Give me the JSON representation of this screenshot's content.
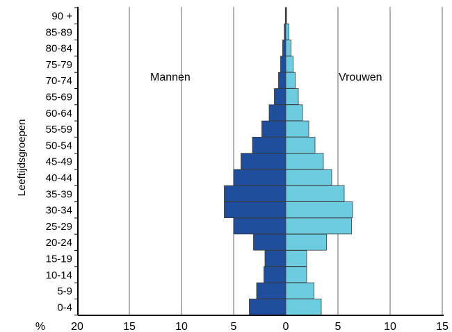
{
  "chart_data": {
    "type": "bar",
    "orientation": "horizontal",
    "subtype": "population-pyramid",
    "ylabel": "Leeftijdsgroepen",
    "xlabel": "%",
    "categories": [
      "0-4",
      "5-9",
      "10-14",
      "15-19",
      "20-24",
      "25-29",
      "30-34",
      "35-39",
      "40-44",
      "45-49",
      "50-54",
      "55-59",
      "60-64",
      "65-69",
      "70-74",
      "75-79",
      "80-84",
      "85-89",
      "90 +"
    ],
    "series": [
      {
        "name": "Mannen",
        "color": "#1f4e9c",
        "side": "left",
        "values": [
          3.5,
          2.8,
          2.1,
          2.0,
          3.1,
          5.0,
          5.9,
          5.9,
          5.0,
          4.3,
          3.2,
          2.3,
          1.6,
          1.1,
          0.7,
          0.5,
          0.3,
          0.15,
          0.05
        ]
      },
      {
        "name": "Vrouwen",
        "color": "#6ecce0",
        "side": "right",
        "values": [
          3.4,
          2.7,
          2.0,
          2.0,
          3.9,
          6.3,
          6.4,
          5.6,
          4.4,
          3.6,
          2.8,
          2.2,
          1.6,
          1.2,
          0.9,
          0.7,
          0.5,
          0.3,
          0.1
        ]
      }
    ],
    "x_ticks": [
      "20",
      "15",
      "10",
      "5",
      "0",
      "5",
      "10",
      "15"
    ],
    "xlim": [
      -20,
      15
    ],
    "grid": true
  }
}
